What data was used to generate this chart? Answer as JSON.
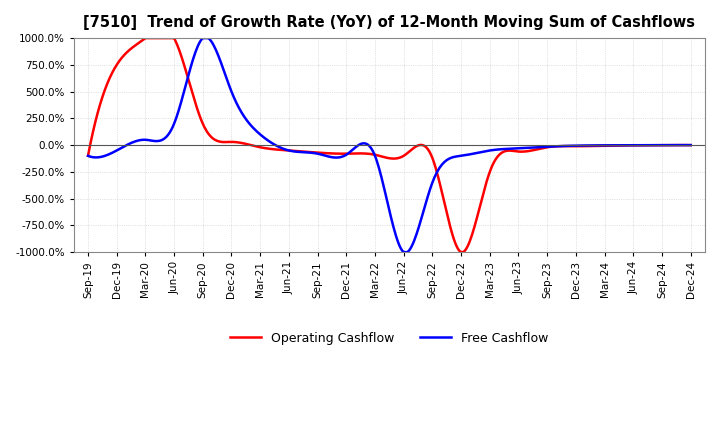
{
  "title": "[7510]  Trend of Growth Rate (YoY) of 12-Month Moving Sum of Cashflows",
  "ylim": [
    -1000,
    1000
  ],
  "yticks": [
    -1000,
    -750,
    -500,
    -250,
    0,
    250,
    500,
    750,
    1000
  ],
  "background_color": "#ffffff",
  "grid_color": "#c8c8c8",
  "operating_color": "#ff0000",
  "free_color": "#0000ff",
  "legend_labels": [
    "Operating Cashflow",
    "Free Cashflow"
  ],
  "x_dates": [
    "Sep-19",
    "Dec-19",
    "Mar-20",
    "Jun-20",
    "Sep-20",
    "Dec-20",
    "Mar-21",
    "Jun-21",
    "Sep-21",
    "Dec-21",
    "Mar-22",
    "Jun-22",
    "Sep-22",
    "Dec-22",
    "Mar-23",
    "Jun-23",
    "Sep-23",
    "Dec-23",
    "Mar-24",
    "Jun-24",
    "Sep-24",
    "Dec-24"
  ],
  "operating_cashflow_x": [
    0,
    1,
    2,
    3,
    4,
    5,
    6,
    7,
    8,
    9,
    10,
    11,
    12,
    13,
    14,
    15,
    16,
    17,
    18,
    19,
    20,
    21
  ],
  "operating_cashflow_y": [
    -100,
    750,
    1000,
    1000,
    200,
    30,
    -20,
    -50,
    -70,
    -80,
    -90,
    -100,
    -120,
    -1000,
    -250,
    -60,
    -20,
    -10,
    -5,
    -2,
    0,
    0
  ],
  "free_cashflow_x": [
    0,
    1,
    2,
    3,
    4,
    5,
    6,
    7,
    8,
    9,
    10,
    11,
    12,
    13,
    14,
    15,
    16,
    17,
    18,
    19,
    20,
    21
  ],
  "free_cashflow_y": [
    -100,
    -50,
    50,
    200,
    1000,
    500,
    100,
    -50,
    -80,
    -90,
    -100,
    -1000,
    -350,
    -100,
    -50,
    -30,
    -15,
    -5,
    -2,
    -1,
    0,
    0
  ]
}
